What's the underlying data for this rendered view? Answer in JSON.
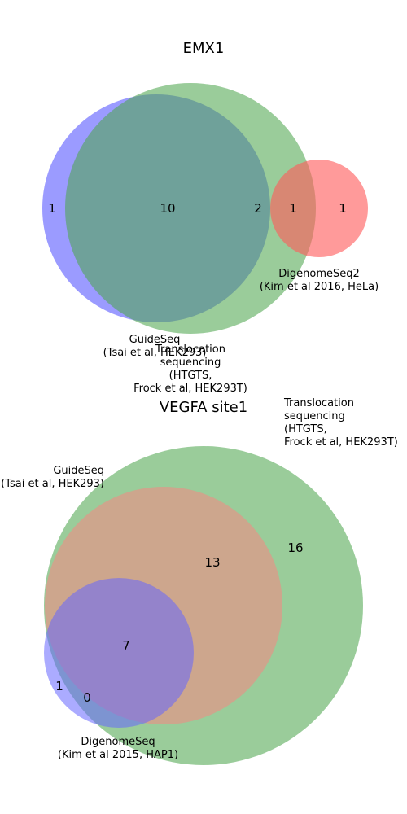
{
  "chart_data": [
    {
      "type": "venn",
      "title": "EMX1",
      "sets": [
        {
          "name": "GuideSeq\n(Tsai et al, HEK293)",
          "color": "#6666ff"
        },
        {
          "name": "Translocation\nsequencing\n(HTGTS,\nFrock et al, HEK293T)",
          "color": "#4da64d"
        },
        {
          "name": "DigenomeSeq2\n(Kim et al 2016, HeLa)",
          "color": "#ff5c5c"
        }
      ],
      "regions": [
        {
          "sets": [
            "GuideSeq"
          ],
          "value": 1
        },
        {
          "sets": [
            "GuideSeq",
            "Translocation sequencing"
          ],
          "value": 10
        },
        {
          "sets": [
            "Translocation sequencing"
          ],
          "value": 2
        },
        {
          "sets": [
            "Translocation sequencing",
            "DigenomeSeq2"
          ],
          "value": 1
        },
        {
          "sets": [
            "DigenomeSeq2"
          ],
          "value": 1
        }
      ]
    },
    {
      "type": "venn",
      "title": "VEGFA site1",
      "sets": [
        {
          "name": "GuideSeq\n(Tsai et al, HEK293)",
          "color": "#ff8080"
        },
        {
          "name": "Translocation\nsequencing\n(HTGTS,\nFrock et al, HEK293T)",
          "color": "#4da64d"
        },
        {
          "name": "DigenomeSeq\n(Kim et al 2015, HAP1)",
          "color": "#6666ff"
        }
      ],
      "regions": [
        {
          "sets": [
            "DigenomeSeq"
          ],
          "value": 1
        },
        {
          "sets": [
            "Translocation sequencing",
            "DigenomeSeq"
          ],
          "value": 0
        },
        {
          "sets": [
            "GuideSeq",
            "Translocation sequencing",
            "DigenomeSeq"
          ],
          "value": 7
        },
        {
          "sets": [
            "GuideSeq",
            "Translocation sequencing"
          ],
          "value": 13
        },
        {
          "sets": [
            "Translocation sequencing"
          ],
          "value": 16
        }
      ]
    }
  ]
}
